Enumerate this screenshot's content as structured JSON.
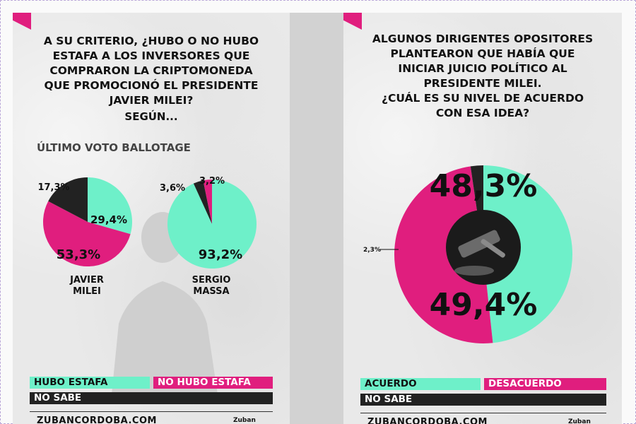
{
  "colors": {
    "hubo": "#6ef0c9",
    "no_hubo": "#e01e7e",
    "no_sabe": "#222222",
    "accent": "#e01e7e"
  },
  "left": {
    "question_lines": [
      "A SU CRITERIO, ¿HUBO O NO HUBO",
      "ESTAFA A LOS INVERSORES QUE",
      "COMPRARON LA CRIPTOMONEDA",
      "QUE PROMOCIONÓ EL PRESIDENTE",
      "JAVIER MILEI?"
    ],
    "subtitle": "SEGÚN...",
    "section": "ÚLTIMO VOTO BALLOTAGE",
    "legend": {
      "hubo": "HUBO ESTAFA",
      "no_hubo": "NO HUBO ESTAFA",
      "no_sabe": "NO SABE"
    },
    "footer": "ZUBANCORDOBA.COM",
    "brand": "Zuban"
  },
  "right": {
    "question_lines": [
      "ALGUNOS DIRIGENTES OPOSITORES",
      "PLANTEARON QUE HABÍA QUE",
      "INICIAR JUICIO POLÍTICO AL",
      "PRESIDENTE MILEI.",
      "¿CUÁL ES SU NIVEL DE ACUERDO",
      "CON ESA IDEA?"
    ],
    "legend": {
      "acuerdo": "ACUERDO",
      "desacuerdo": "DESACUERDO",
      "no_sabe": "NO SABE"
    },
    "footer": "ZUBANCORDOBA.COM",
    "brand": "Zuban"
  },
  "chart_data": [
    {
      "type": "pie",
      "name": "JAVIER MILEI",
      "categories": [
        "HUBO ESTAFA",
        "NO HUBO ESTAFA",
        "NO SABE"
      ],
      "values": [
        29.4,
        53.3,
        17.3
      ],
      "labels": [
        "29,4%",
        "53,3%",
        "17,3%"
      ]
    },
    {
      "type": "pie",
      "name": "SERGIO MASSA",
      "categories": [
        "HUBO ESTAFA",
        "NO HUBO ESTAFA",
        "NO SABE"
      ],
      "values": [
        93.2,
        3.2,
        3.6
      ],
      "labels": [
        "93,2%",
        "3,2%",
        "3,6%"
      ]
    },
    {
      "type": "pie",
      "name": "",
      "categories": [
        "ACUERDO",
        "DESACUERDO",
        "NO SABE"
      ],
      "values": [
        48.3,
        49.4,
        2.3
      ],
      "labels": [
        "48,3%",
        "49,4%",
        "2,3%"
      ]
    }
  ]
}
